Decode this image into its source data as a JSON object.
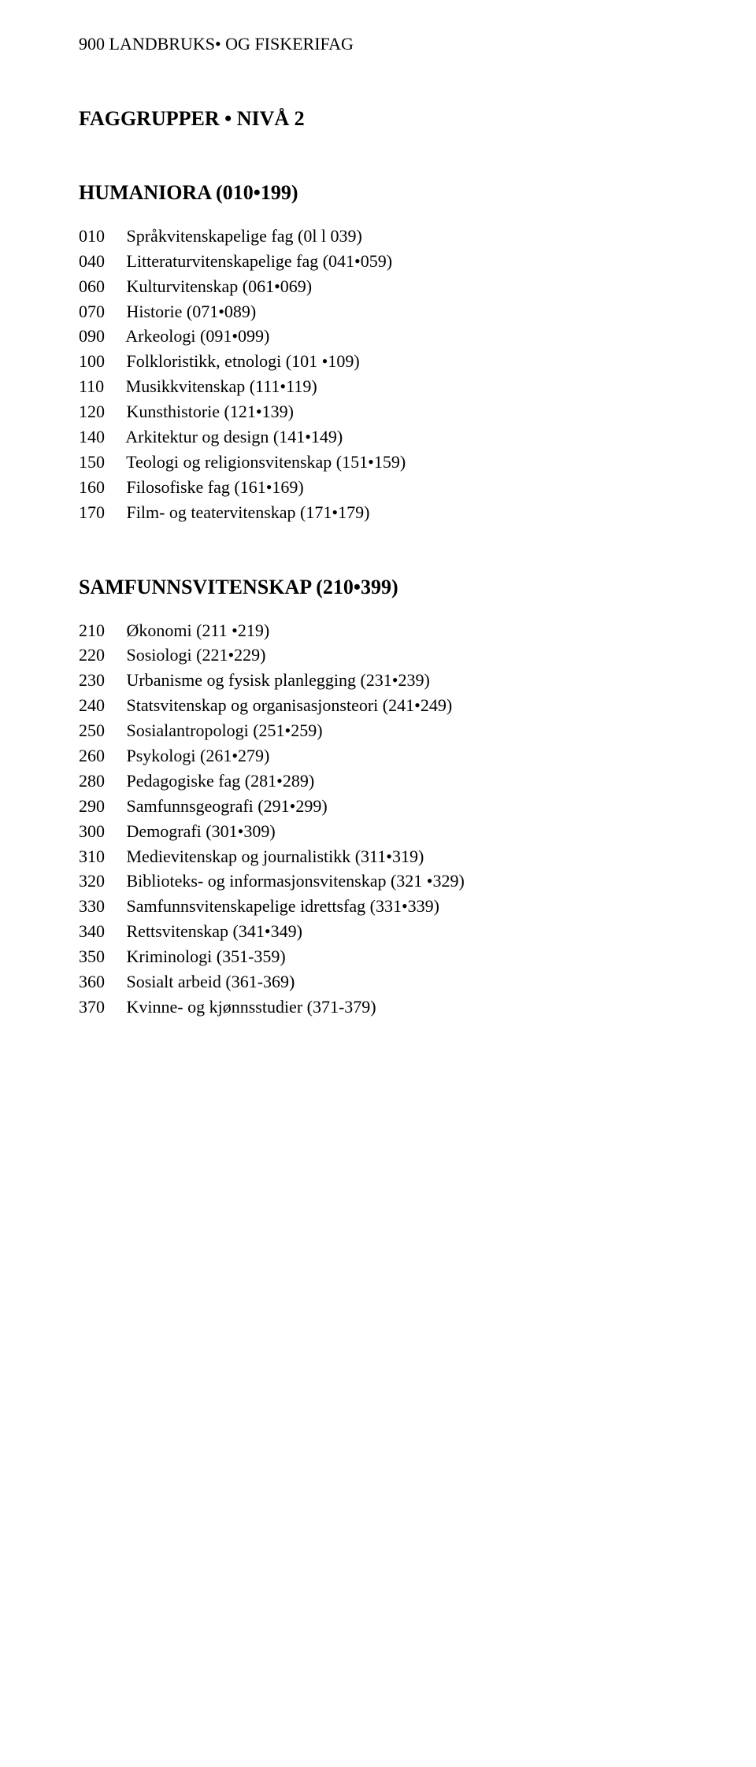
{
  "topLine": "900 LANDBRUKS• OG FISKERIFAG",
  "mainTitle": "FAGGRUPPER • NIVÅ 2",
  "section1": {
    "heading": "HUMANIORA (010•199)",
    "rows": [
      {
        "code": "010",
        "label": "Språkvitenskapelige fag (0l l 039)"
      },
      {
        "code": "040",
        "label": "Litteraturvitenskapelige fag (041•059)"
      },
      {
        "code": "060",
        "label": "Kulturvitenskap (061•069)"
      },
      {
        "code": "070",
        "label": "Historie (071•089)"
      },
      {
        "code": "090",
        "label": "Arkeologi (091•099)"
      },
      {
        "code": "100",
        "label": "Folkloristikk, etnologi (101 •109)"
      },
      {
        "code": "110",
        "label": "Musikkvitenskap (111•119)"
      },
      {
        "code": "120",
        "label": "Kunsthistorie (121•139)"
      },
      {
        "code": "140",
        "label": "Arkitektur og design (141•149)"
      },
      {
        "code": "150",
        "label": "Teologi og religionsvitenskap (151•159)"
      },
      {
        "code": "160",
        "label": "Filosofiske fag (161•169)"
      },
      {
        "code": "170",
        "label": "Film- og teatervitenskap (171•179)"
      }
    ]
  },
  "section2": {
    "heading": "SAMFUNNSVITENSKAP (210•399)",
    "rows": [
      {
        "code": "210",
        "label": "Økonomi (211 •219)"
      },
      {
        "code": "220",
        "label": "Sosiologi (221•229)"
      },
      {
        "code": "230",
        "label": "Urbanisme og fysisk planlegging (231•239)"
      },
      {
        "code": "240",
        "label": "Statsvitenskap og organisasjonsteori (241•249)"
      },
      {
        "code": "250",
        "label": "Sosialantropologi (251•259)"
      },
      {
        "code": "260",
        "label": "Psykologi (261•279)"
      },
      {
        "code": "280",
        "label": "Pedagogiske fag (281•289)"
      },
      {
        "code": "290",
        "label": "Samfunnsgeografi (291•299)"
      },
      {
        "code": "300",
        "label": "Demografi (301•309)"
      },
      {
        "code": "310",
        "label": "Medievitenskap og journalistikk (311•319)"
      },
      {
        "code": "320",
        "label": "Biblioteks- og informasjonsvitenskap (321 •329)"
      },
      {
        "code": "330",
        "label": "Samfunnsvitenskapelige idrettsfag (331•339)"
      },
      {
        "code": "340",
        "label": "Rettsvitenskap (341•349)"
      },
      {
        "code": "350",
        "label": "Kriminologi (351-359)"
      },
      {
        "code": "360",
        "label": "Sosialt arbeid (361-369)"
      },
      {
        "code": "370",
        "label": "Kvinne- og kjønnsstudier (371-379)"
      }
    ]
  },
  "layout": {
    "codeColWidthCh": 8,
    "fontSizePx": 22,
    "headingFontSizePx": 26
  }
}
